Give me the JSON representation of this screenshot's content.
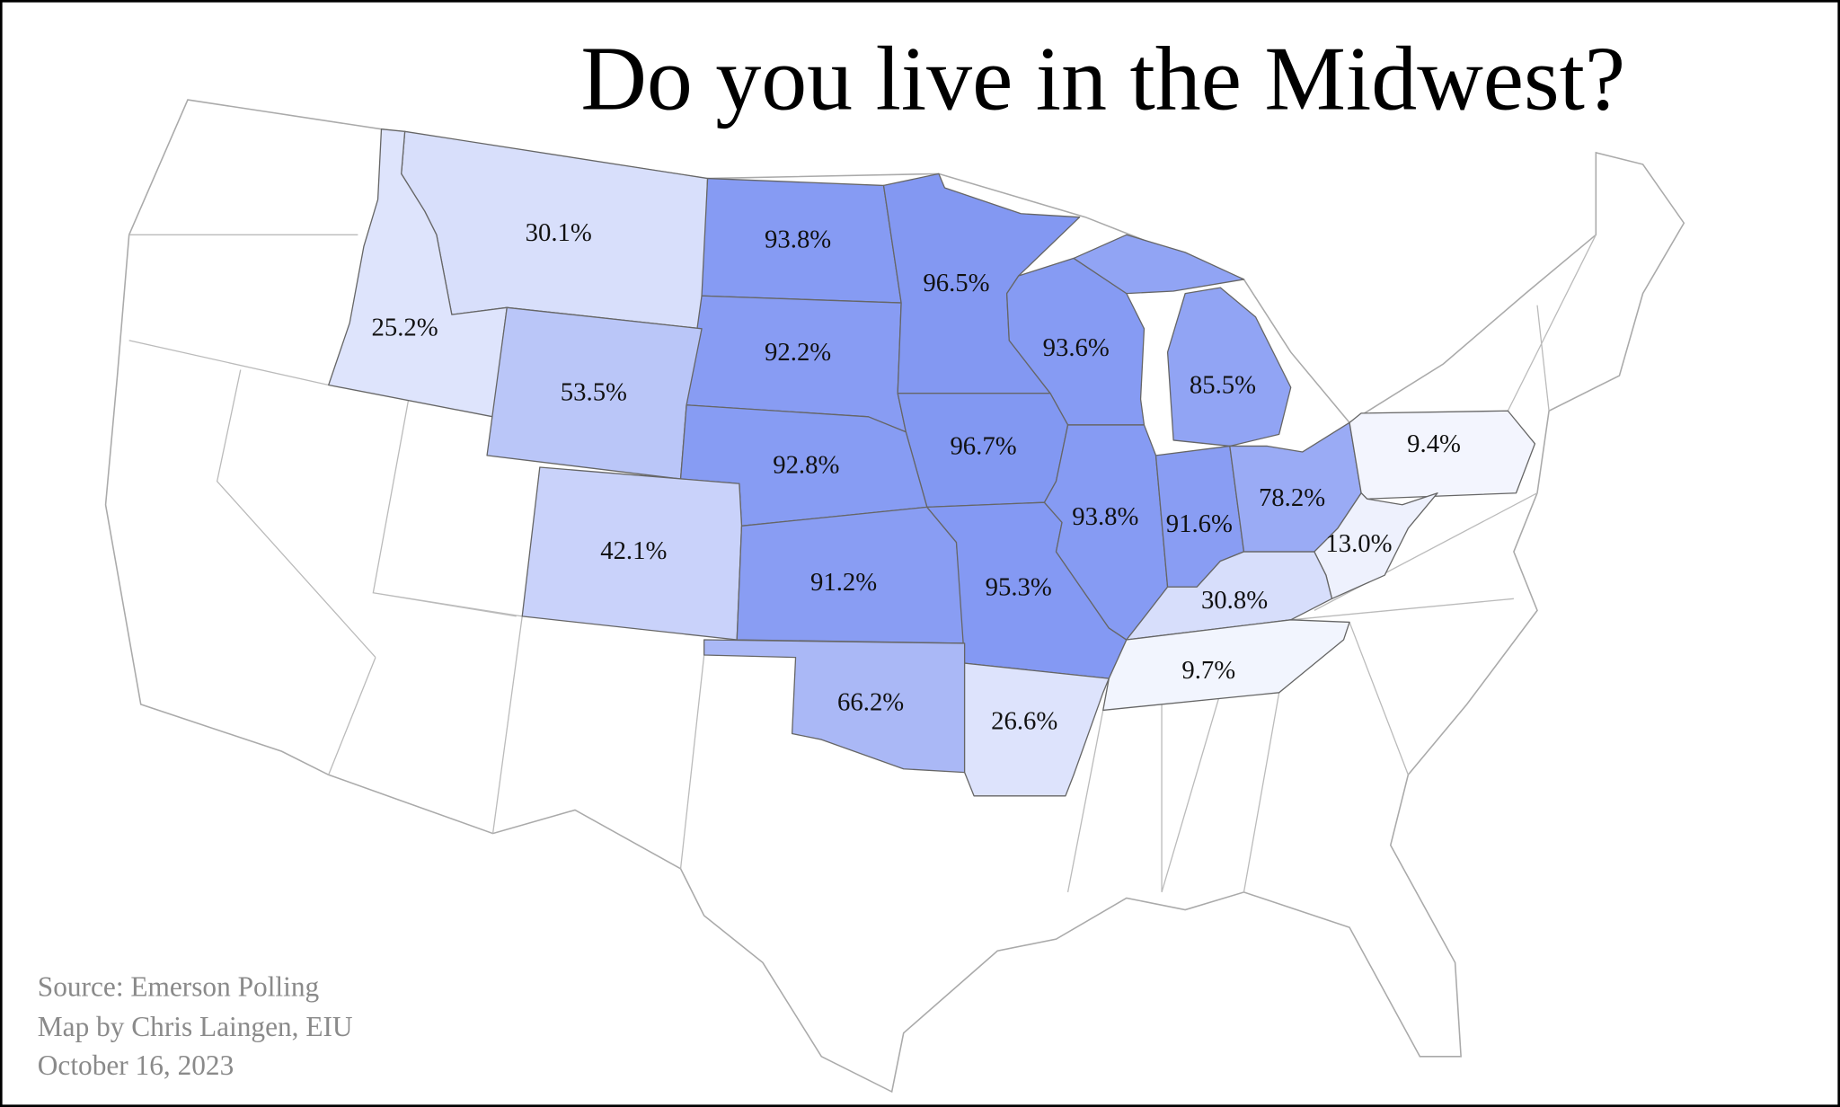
{
  "chart_data": {
    "type": "choropleth",
    "title": "Do you live in the Midwest?",
    "annotations": [
      "Source: Emerson Polling",
      "Map by Chris Laingen, EIU",
      "October 16, 2023"
    ],
    "values": [
      30.1,
      25.2,
      93.8,
      92.2,
      53.5,
      96.5,
      93.6,
      85.5,
      96.7,
      92.8,
      42.1,
      91.2,
      95.3,
      93.8,
      91.6,
      78.2,
      9.4,
      13.0,
      30.8,
      9.7,
      66.2,
      26.6
    ],
    "value_labels": [
      "30.1%",
      "25.2%",
      "93.8%",
      "92.2%",
      "53.5%",
      "96.5%",
      "93.6%",
      "85.5%",
      "96.7%",
      "92.8%",
      "42.1%",
      "91.2%",
      "95.3%",
      "93.8%",
      "91.6%",
      "78.2%",
      "9.4%",
      "13.0%",
      "30.8%",
      "9.7%",
      "66.2%",
      "26.6%"
    ],
    "clim": [
      0,
      100
    ],
    "color_range": [
      "#ffffff",
      "#7e94f2"
    ]
  }
}
